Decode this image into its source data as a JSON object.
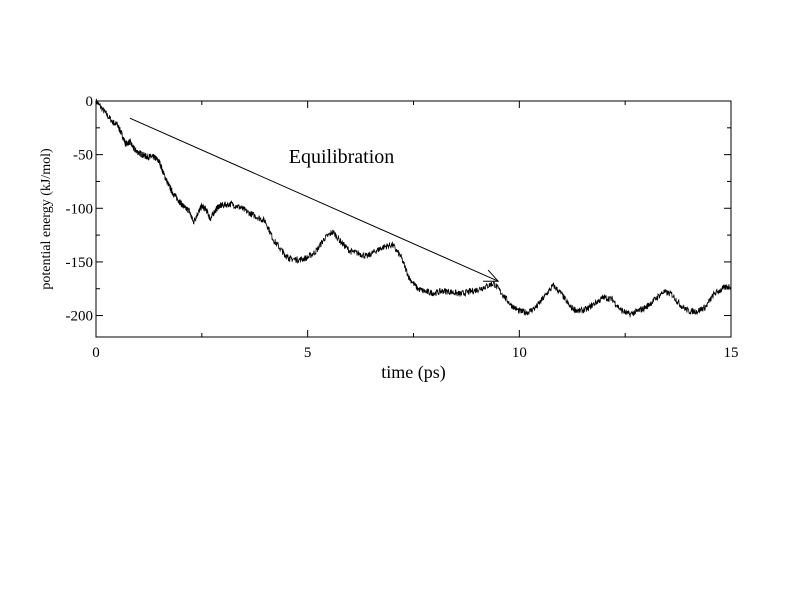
{
  "chart_data": {
    "type": "line",
    "title": "",
    "xlabel": "time (ps)",
    "ylabel": "potential energy (kJ/mol)",
    "xlim": [
      0,
      15
    ],
    "ylim": [
      -220,
      0
    ],
    "xticks": [
      0,
      5,
      10,
      15
    ],
    "yticks": [
      0,
      -50,
      -100,
      -150,
      -200
    ],
    "grid": false,
    "series": [
      {
        "x": [
          0,
          0.2,
          0.4,
          0.5,
          0.6,
          0.7,
          0.8,
          0.9,
          1.0,
          1.1,
          1.2,
          1.3,
          1.4,
          1.5,
          1.6,
          1.7,
          1.8,
          1.9,
          2.0,
          2.1,
          2.2,
          2.3,
          2.4,
          2.5,
          2.6,
          2.7,
          2.8,
          2.9,
          3.0,
          3.2,
          3.4,
          3.6,
          3.8,
          4.0,
          4.2,
          4.4,
          4.5,
          4.6,
          4.8,
          5.0,
          5.2,
          5.4,
          5.6,
          5.8,
          6.0,
          6.2,
          6.4,
          6.6,
          6.8,
          7.0,
          7.2,
          7.4,
          7.6,
          7.8,
          8.0,
          8.2,
          8.4,
          8.6,
          8.8,
          9.0,
          9.2,
          9.4,
          9.6,
          9.8,
          10.0,
          10.2,
          10.4,
          10.6,
          10.8,
          11.0,
          11.2,
          11.4,
          11.6,
          11.8,
          12.0,
          12.2,
          12.4,
          12.6,
          12.8,
          13.0,
          13.2,
          13.4,
          13.6,
          13.8,
          14.0,
          14.2,
          14.4,
          14.6,
          14.8,
          15.0
        ],
        "y": [
          0,
          -10,
          -20,
          -22,
          -30,
          -40,
          -38,
          -45,
          -48,
          -50,
          -52,
          -52,
          -53,
          -57,
          -68,
          -77,
          -85,
          -90,
          -95,
          -100,
          -102,
          -113,
          -105,
          -98,
          -101,
          -110,
          -103,
          -98,
          -97,
          -96,
          -99,
          -104,
          -108,
          -112,
          -130,
          -140,
          -145,
          -147,
          -148,
          -146,
          -140,
          -128,
          -122,
          -132,
          -140,
          -142,
          -145,
          -140,
          -136,
          -134,
          -145,
          -165,
          -175,
          -178,
          -179,
          -177,
          -178,
          -180,
          -178,
          -176,
          -173,
          -170,
          -180,
          -190,
          -196,
          -197,
          -192,
          -182,
          -172,
          -180,
          -192,
          -196,
          -194,
          -188,
          -183,
          -185,
          -195,
          -199,
          -196,
          -192,
          -185,
          -178,
          -180,
          -190,
          -196,
          -196,
          -192,
          -180,
          -175,
          -172
        ]
      }
    ],
    "annotations": [
      {
        "text": "Equilibration",
        "x": 5.8,
        "y": -52
      },
      {
        "type": "arrow",
        "from": [
          0.8,
          -16
        ],
        "to": [
          9.5,
          -168
        ]
      }
    ]
  }
}
